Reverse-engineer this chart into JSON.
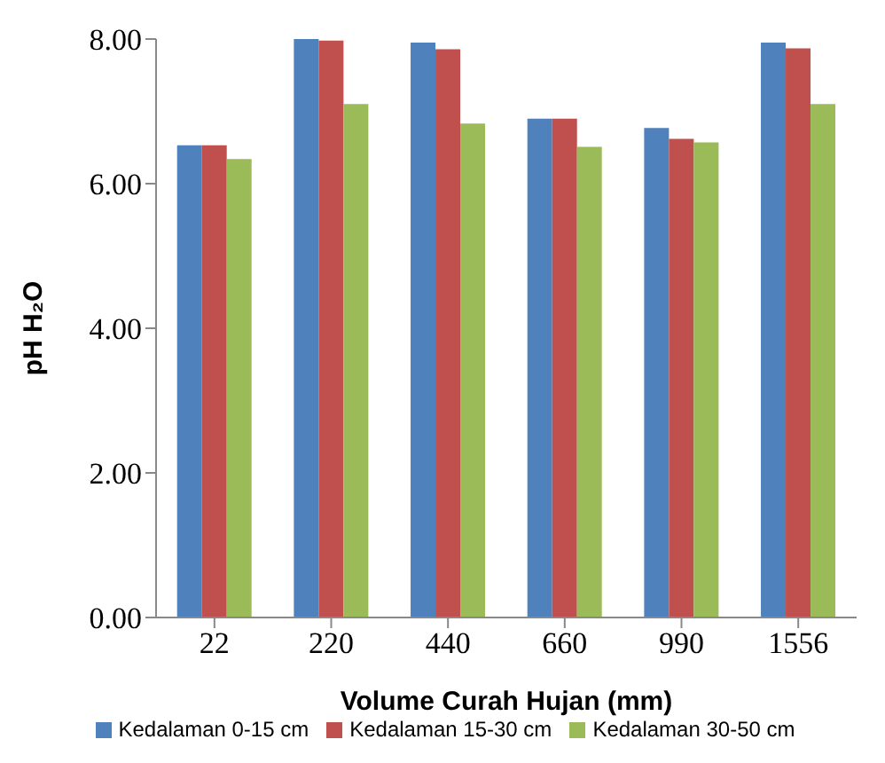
{
  "chart_data": {
    "type": "bar",
    "xlabel": "Volume Curah Hujan (mm)",
    "ylabel": "pH H₂O",
    "categories": [
      "22",
      "220",
      "440",
      "660",
      "990",
      "1556"
    ],
    "series": [
      {
        "name": "Kedalaman 0-15 cm",
        "color": "#4f81bd",
        "values": [
          6.53,
          8.0,
          7.95,
          6.9,
          6.77,
          7.95
        ]
      },
      {
        "name": "Kedalaman 15-30 cm",
        "color": "#c0504d",
        "values": [
          6.53,
          7.98,
          7.86,
          6.9,
          6.62,
          7.87
        ]
      },
      {
        "name": "Kedalaman 30-50 cm",
        "color": "#9bbb59",
        "values": [
          6.34,
          7.1,
          6.83,
          6.51,
          6.57,
          7.1
        ]
      }
    ],
    "ylim": [
      0,
      8
    ],
    "yticks": [
      {
        "value": 0,
        "label": "0.00"
      },
      {
        "value": 2,
        "label": "2.00"
      },
      {
        "value": 4,
        "label": "4.00"
      },
      {
        "value": 6,
        "label": "6.00"
      },
      {
        "value": 8,
        "label": "8.00"
      }
    ],
    "grid": false,
    "legend": "bottom"
  }
}
